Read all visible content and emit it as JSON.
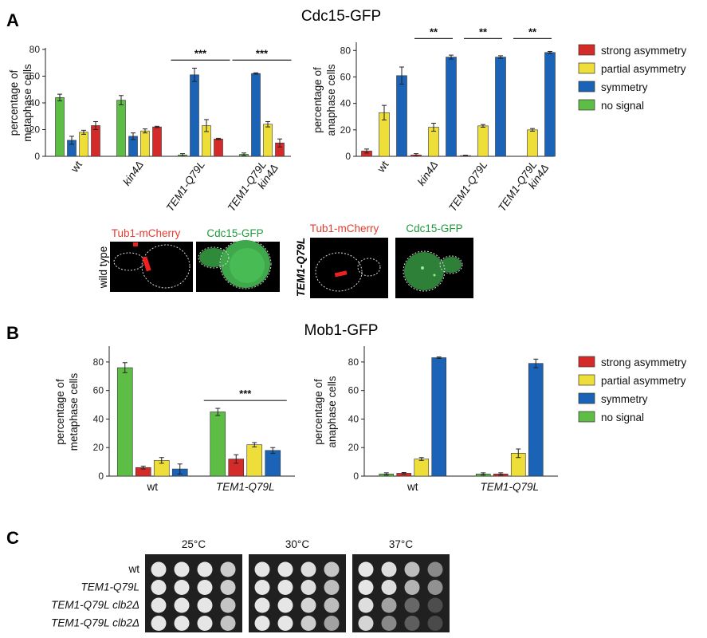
{
  "colors": {
    "strong": "#d42a2a",
    "partial": "#eede3a",
    "symmetry": "#1b63b6",
    "nosignal": "#5dbd45",
    "red_label": "#e53a2f",
    "green_label": "#1f9a3c"
  },
  "panels": {
    "A": {
      "label": "A",
      "title": "Cdc15-GFP"
    },
    "B": {
      "label": "B",
      "title": "Mob1-GFP"
    },
    "C": {
      "label": "C"
    }
  },
  "legend": {
    "items": [
      {
        "label": "strong asymmetry",
        "color": "#d42a2a"
      },
      {
        "label": "partial asymmetry",
        "color": "#eede3a"
      },
      {
        "label": "symmetry",
        "color": "#1b63b6"
      },
      {
        "label": "no signal",
        "color": "#5dbd45"
      }
    ]
  },
  "chart_data": [
    {
      "id": "A-metaphase",
      "type": "bar",
      "ylabel": [
        "percentage of",
        "metaphase cells"
      ],
      "ylim": [
        0,
        80
      ],
      "yticks": [
        0,
        20,
        40,
        60,
        80
      ],
      "categories": [
        "wt",
        "kin4Δ",
        "TEM1-Q79L",
        "TEM1-Q79L kin4Δ"
      ],
      "category_lines": [
        [
          "wt"
        ],
        [
          "kin4Δ"
        ],
        [
          "TEM1-Q79L"
        ],
        [
          "TEM1-Q79L",
          "kin4Δ"
        ]
      ],
      "category_italic": [
        false,
        true,
        true,
        true
      ],
      "series": [
        {
          "key": "nosignal",
          "values": [
            44,
            42,
            1,
            1.5
          ],
          "errors": [
            2.5,
            3.5,
            1,
            1
          ]
        },
        {
          "key": "symmetry",
          "values": [
            12,
            15,
            61,
            62
          ],
          "errors": [
            3,
            2.5,
            5,
            0.5
          ]
        },
        {
          "key": "partial",
          "values": [
            18,
            19,
            23,
            24
          ],
          "errors": [
            1.5,
            1.5,
            4.5,
            2
          ]
        },
        {
          "key": "strong",
          "values": [
            23,
            22,
            13,
            10
          ],
          "errors": [
            3,
            0.5,
            0.5,
            3
          ]
        }
      ],
      "significance": [
        {
          "from": 2,
          "to": 2,
          "label": "***",
          "y": 72
        },
        {
          "from": 3,
          "to": 3,
          "label": "***",
          "y": 72
        }
      ]
    },
    {
      "id": "A-anaphase",
      "type": "bar",
      "ylabel": [
        "percentage of",
        "anaphase cells"
      ],
      "ylim": [
        0,
        85
      ],
      "yticks": [
        0,
        20,
        40,
        60,
        80
      ],
      "categories": [
        "wt",
        "kin4Δ",
        "TEM1-Q79L",
        "TEM1-Q79L kin4Δ"
      ],
      "category_lines": [
        [
          "wt"
        ],
        [
          "kin4Δ"
        ],
        [
          "TEM1-Q79L"
        ],
        [
          "TEM1-Q79L",
          "kin4Δ"
        ]
      ],
      "category_italic": [
        false,
        true,
        true,
        true
      ],
      "series": [
        {
          "key": "strong",
          "values": [
            4,
            1,
            0.5,
            0
          ],
          "errors": [
            1.5,
            1,
            0.3,
            0
          ]
        },
        {
          "key": "partial",
          "values": [
            33,
            22,
            23,
            20
          ],
          "errors": [
            5.5,
            3,
            1,
            1
          ]
        },
        {
          "key": "symmetry",
          "values": [
            61,
            75,
            75,
            78.5
          ],
          "errors": [
            6.5,
            1.5,
            1,
            0.8
          ]
        }
      ],
      "significance": [
        {
          "from": 1,
          "to": 1,
          "label": "**",
          "y": 89
        },
        {
          "from": 2,
          "to": 2,
          "label": "**",
          "y": 89
        },
        {
          "from": 3,
          "to": 3,
          "label": "**",
          "y": 89
        }
      ]
    },
    {
      "id": "B-metaphase",
      "type": "bar",
      "ylabel": [
        "percentage of",
        "metaphase cells"
      ],
      "ylim": [
        0,
        90
      ],
      "yticks": [
        0,
        20,
        40,
        60,
        80
      ],
      "categories": [
        "wt",
        "TEM1-Q79L"
      ],
      "category_lines": [
        [
          "wt"
        ],
        [
          "TEM1-Q79L"
        ]
      ],
      "category_italic": [
        false,
        true
      ],
      "series": [
        {
          "key": "nosignal",
          "values": [
            76,
            45
          ],
          "errors": [
            3.5,
            2.5
          ]
        },
        {
          "key": "strong",
          "values": [
            6,
            12
          ],
          "errors": [
            1,
            3
          ]
        },
        {
          "key": "partial",
          "values": [
            11,
            22
          ],
          "errors": [
            2,
            1.5
          ]
        },
        {
          "key": "symmetry",
          "values": [
            5,
            18
          ],
          "errors": [
            3.5,
            2
          ]
        }
      ],
      "significance": [
        {
          "from": 1,
          "to": 1,
          "label": "***",
          "y": 53
        }
      ]
    },
    {
      "id": "B-anaphase",
      "type": "bar",
      "ylabel": [
        "percentage of",
        "anaphase cells"
      ],
      "ylim": [
        0,
        90
      ],
      "yticks": [
        0,
        20,
        40,
        60,
        80
      ],
      "categories": [
        "wt",
        "TEM1-Q79L"
      ],
      "category_lines": [
        [
          "wt"
        ],
        [
          "TEM1-Q79L"
        ]
      ],
      "category_italic": [
        false,
        true
      ],
      "series": [
        {
          "key": "nosignal",
          "values": [
            1.5,
            1.5
          ],
          "errors": [
            0.8,
            0.8
          ]
        },
        {
          "key": "strong",
          "values": [
            2,
            1.5
          ],
          "errors": [
            0.5,
            0.8
          ]
        },
        {
          "key": "partial",
          "values": [
            12,
            16
          ],
          "errors": [
            1,
            3
          ]
        },
        {
          "key": "symmetry",
          "values": [
            83,
            79
          ],
          "errors": [
            0.5,
            3
          ]
        }
      ],
      "significance": []
    }
  ],
  "micrographs": {
    "left_row_label": "wild type",
    "right_row_label": "TEM1-Q79L",
    "channel_red": "Tub1-mCherry",
    "channel_green": "Cdc15-GFP"
  },
  "spot_assay": {
    "temperatures": [
      "25°C",
      "30°C",
      "37°C"
    ],
    "strains": [
      "wt",
      "TEM1-Q79L",
      "TEM1-Q79L clb2Δ",
      "TEM1-Q79L clb2Δ"
    ],
    "strain_italic": [
      false,
      true,
      true,
      true
    ]
  }
}
